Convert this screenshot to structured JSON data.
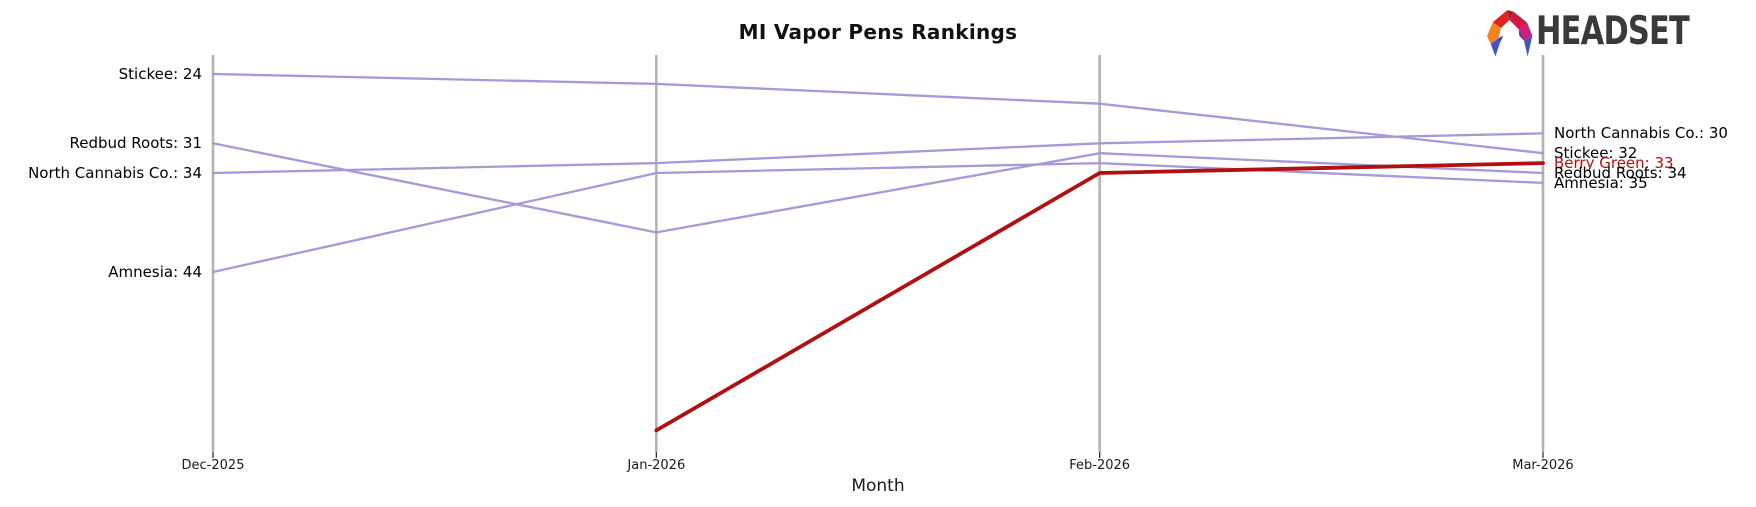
{
  "title": "MI Vapor Pens Rankings",
  "logo": {
    "text": "HEADSET"
  },
  "chart_data": {
    "type": "line",
    "subtype": "bump-ranking",
    "title": "MI Vapor Pens Rankings",
    "xlabel": "Month",
    "ylabel": "",
    "x_categories": [
      "Dec-2025",
      "Jan-2026",
      "Feb-2026",
      "Mar-2026"
    ],
    "y_inverted": true,
    "y_range_visible": [
      22,
      62
    ],
    "grid": "vertical-month-axes-only",
    "legend_position": "inline-edge-labels",
    "series": [
      {
        "name": "Stickee",
        "values": [
          24,
          25,
          27,
          32
        ],
        "color": "#a39ad8",
        "highlighted": false
      },
      {
        "name": "Redbud Roots",
        "values": [
          31,
          40,
          32,
          34
        ],
        "color": "#a39ad8",
        "highlighted": false
      },
      {
        "name": "North Cannabis Co.",
        "values": [
          34,
          33,
          31,
          30
        ],
        "color": "#a39ad8",
        "highlighted": false
      },
      {
        "name": "Amnesia",
        "values": [
          44,
          34,
          33,
          35
        ],
        "color": "#a39ad8",
        "highlighted": false
      },
      {
        "name": "Berry Green",
        "values": [
          null,
          60,
          34,
          33
        ],
        "color": "#b11010",
        "highlighted": true
      }
    ],
    "left_labels": [
      {
        "text": "Stickee: 24",
        "rank": 24,
        "color": "#000000"
      },
      {
        "text": "Redbud Roots: 31",
        "rank": 31,
        "color": "#000000"
      },
      {
        "text": "North Cannabis Co.: 34",
        "rank": 34,
        "color": "#000000"
      },
      {
        "text": "Amnesia: 44",
        "rank": 44,
        "color": "#000000"
      }
    ],
    "right_labels": [
      {
        "text": "North Cannabis Co.: 30",
        "rank": 30,
        "color": "#000000"
      },
      {
        "text": "Stickee: 32",
        "rank": 32,
        "color": "#000000"
      },
      {
        "text": "Berry Green: 33",
        "rank": 33,
        "color": "#b11010"
      },
      {
        "text": "Redbud Roots: 34",
        "rank": 34,
        "color": "#000000"
      },
      {
        "text": "Amnesia: 35",
        "rank": 35,
        "color": "#000000"
      }
    ],
    "colors": {
      "line": "#a39ad8",
      "highlight": "#b11010",
      "axis": "#b3b3b3",
      "tick": "#222222"
    }
  }
}
